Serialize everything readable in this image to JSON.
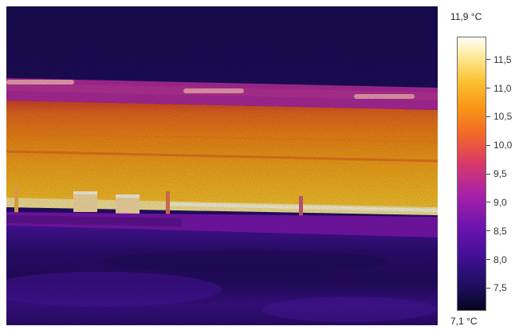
{
  "legend": {
    "max_label": "11,9 °C",
    "min_label": "7,1 °C",
    "ticks": [
      {
        "label": "11,5",
        "value": 11.5
      },
      {
        "label": "11,0",
        "value": 11.0
      },
      {
        "label": "10,5",
        "value": 10.5
      },
      {
        "label": "10,0",
        "value": 10.0
      },
      {
        "label": "9,5",
        "value": 9.5
      },
      {
        "label": "9,0",
        "value": 9.0
      },
      {
        "label": "8,5",
        "value": 8.5
      },
      {
        "label": "8,0",
        "value": 8.0
      },
      {
        "label": "7,5",
        "value": 7.5
      }
    ],
    "range": [
      7.1,
      11.9
    ]
  },
  "palette": {
    "cold": "#05051e",
    "violet": "#3d0f8c",
    "purple": "#6a13b0",
    "magenta": "#a521a8",
    "red": "#d93a6a",
    "orange": "#f2662a",
    "amber": "#f99515",
    "yellow": "#fcc132",
    "pale": "#fde99a",
    "hot": "#fffff5"
  }
}
